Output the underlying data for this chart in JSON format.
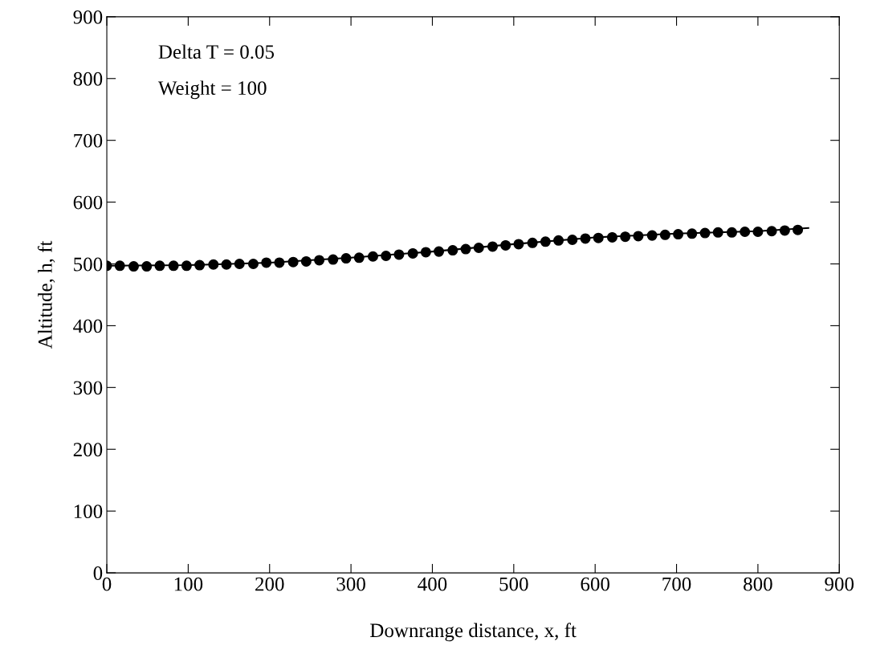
{
  "chart_data": {
    "type": "scatter",
    "xlabel": "Downrange distance, x, ft",
    "ylabel": "Altitude, h, ft",
    "annotations": [
      "Delta T = 0.05",
      "Weight = 100"
    ],
    "xlim": [
      0,
      900
    ],
    "xticks": [
      0,
      100,
      200,
      300,
      400,
      500,
      600,
      700,
      800,
      900
    ],
    "ylim": [
      0,
      900
    ],
    "yticks": [
      0,
      100,
      200,
      300,
      400,
      500,
      600,
      700,
      800,
      900
    ],
    "grid": false,
    "legend": false,
    "series": [
      {
        "type": "line",
        "color": "#000000",
        "marker": "none",
        "line_style": "solid",
        "x": [
          0,
          100,
          200,
          300,
          400,
          500,
          600,
          700,
          800,
          862
        ],
        "values": [
          497,
          498,
          502,
          510,
          520,
          532,
          543,
          549,
          553,
          558
        ]
      },
      {
        "color": "#000000",
        "marker": "circle",
        "x": [
          0,
          16,
          33,
          49,
          65,
          82,
          98,
          114,
          131,
          147,
          163,
          180,
          196,
          212,
          229,
          245,
          261,
          278,
          294,
          310,
          327,
          343,
          359,
          376,
          392,
          408,
          425,
          441,
          457,
          474,
          490,
          506,
          523,
          539,
          555,
          572,
          588,
          604,
          621,
          637,
          653,
          670,
          686,
          702,
          719,
          735,
          751,
          768,
          784,
          800,
          817,
          833,
          849
        ],
        "values": [
          497,
          497,
          496,
          496,
          497,
          497,
          497,
          498,
          499,
          499,
          500,
          500,
          502,
          502,
          503,
          504,
          506,
          507,
          509,
          510,
          512,
          513,
          515,
          517,
          519,
          520,
          522,
          524,
          526,
          528,
          530,
          532,
          534,
          536,
          538,
          539,
          541,
          542,
          543,
          544,
          545,
          546,
          547,
          548,
          549,
          550,
          551,
          551,
          552,
          552,
          553,
          554,
          555
        ]
      }
    ]
  }
}
